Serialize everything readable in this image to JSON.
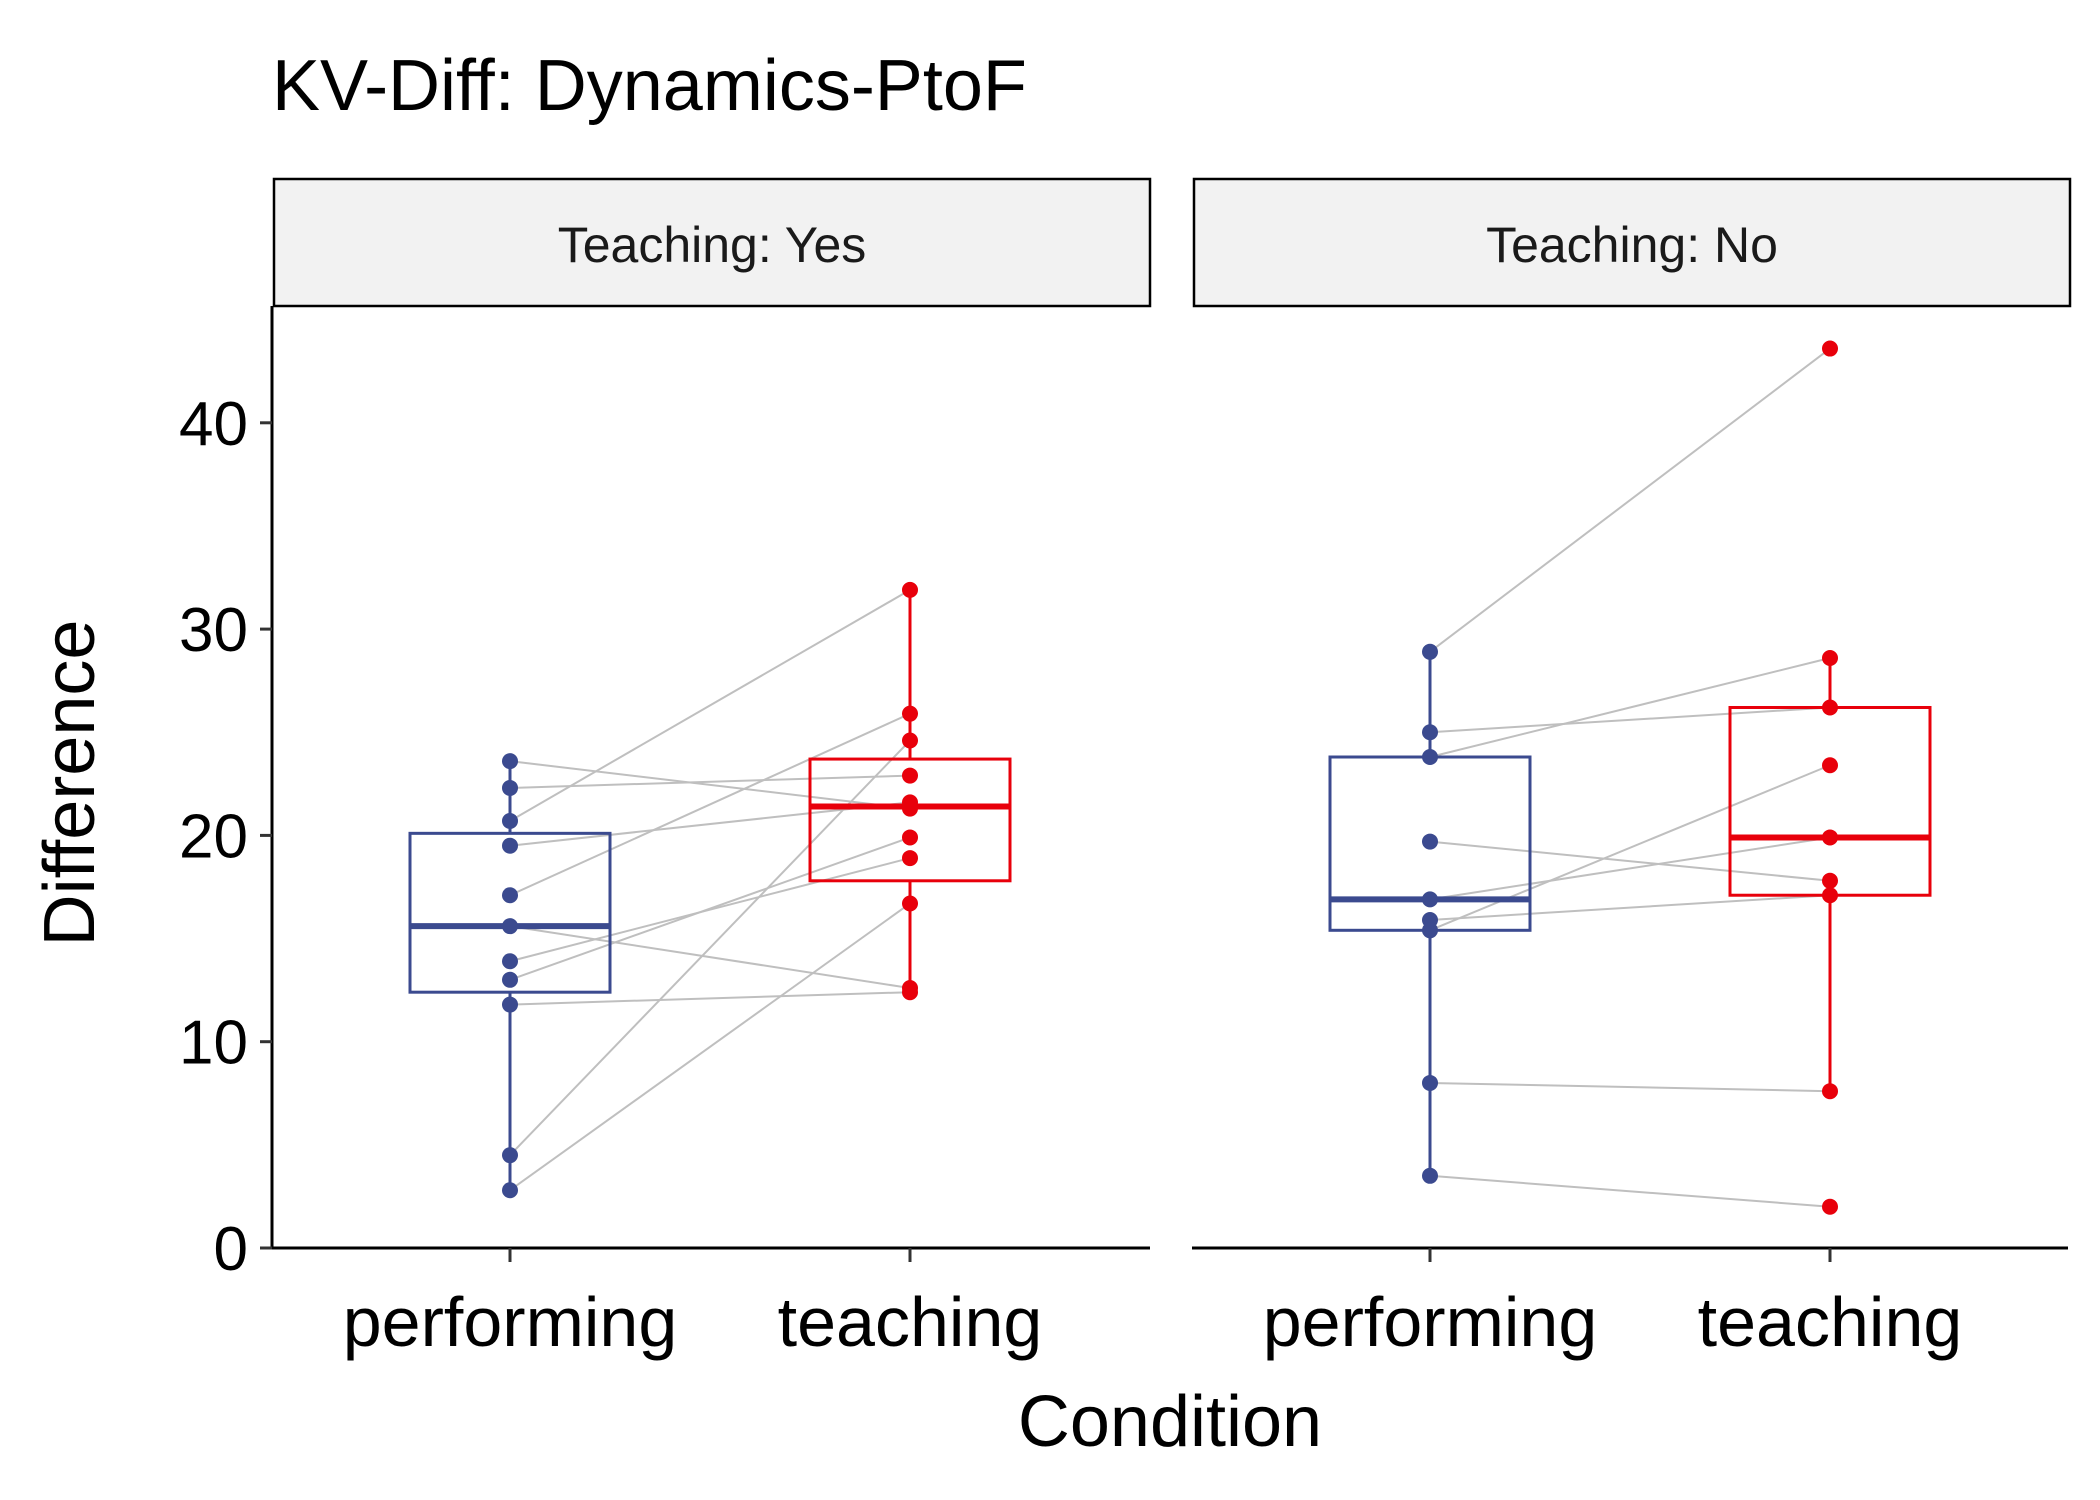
{
  "chart_data": {
    "type": "box",
    "title": "KV-Diff: Dynamics-PtoF",
    "xlabel": "Condition",
    "ylabel": "Difference",
    "ylim": [
      0,
      45
    ],
    "y_ticks": [
      0,
      10,
      20,
      30,
      40
    ],
    "categories": [
      "performing",
      "teaching"
    ],
    "colors": {
      "performing": "#3b4a8f",
      "teaching": "#e8000b",
      "line": "#bfbfbf",
      "strip_fill": "#f2f2f2"
    },
    "grid": false,
    "panels": [
      {
        "strip_label": "Teaching: Yes",
        "boxes": [
          {
            "category": "performing",
            "q1": 12.4,
            "median": 15.6,
            "q3": 20.1,
            "whisker_low": 2.8,
            "whisker_high": 23.6
          },
          {
            "category": "teaching",
            "q1": 17.8,
            "median": 21.4,
            "q3": 23.7,
            "whisker_low": 12.4,
            "whisker_high": 31.9
          }
        ],
        "pairs": [
          {
            "performing": 23.6,
            "teaching": 21.3
          },
          {
            "performing": 22.3,
            "teaching": 22.9
          },
          {
            "performing": 20.7,
            "teaching": 31.9
          },
          {
            "performing": 19.5,
            "teaching": 21.6
          },
          {
            "performing": 17.1,
            "teaching": 25.9
          },
          {
            "performing": 15.6,
            "teaching": 12.6
          },
          {
            "performing": 13.9,
            "teaching": 18.9
          },
          {
            "performing": 13.0,
            "teaching": 19.9
          },
          {
            "performing": 11.8,
            "teaching": 12.4
          },
          {
            "performing": 4.5,
            "teaching": 24.6
          },
          {
            "performing": 2.8,
            "teaching": 16.7
          }
        ]
      },
      {
        "strip_label": "Teaching: No",
        "boxes": [
          {
            "category": "performing",
            "q1": 15.4,
            "median": 16.9,
            "q3": 23.8,
            "whisker_low": 3.5,
            "whisker_high": 28.9
          },
          {
            "category": "teaching",
            "q1": 17.1,
            "median": 19.9,
            "q3": 26.2,
            "whisker_low": 7.6,
            "whisker_high": 28.6
          }
        ],
        "pairs": [
          {
            "performing": 28.9,
            "teaching": 43.6
          },
          {
            "performing": 25.0,
            "teaching": 26.2
          },
          {
            "performing": 23.8,
            "teaching": 28.6
          },
          {
            "performing": 19.7,
            "teaching": 17.8
          },
          {
            "performing": 16.9,
            "teaching": 19.9
          },
          {
            "performing": 15.9,
            "teaching": 17.1
          },
          {
            "performing": 15.4,
            "teaching": 23.4
          },
          {
            "performing": 8.0,
            "teaching": 7.6
          },
          {
            "performing": 3.5,
            "teaching": 2.0
          }
        ]
      }
    ]
  }
}
